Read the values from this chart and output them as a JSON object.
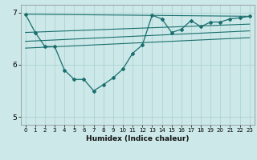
{
  "xlabel": "Humidex (Indice chaleur)",
  "bg_color": "#cce8e8",
  "grid_color": "#aacfcf",
  "line_color": "#1a6e6e",
  "xlim": [
    -0.5,
    23.5
  ],
  "ylim": [
    4.85,
    7.15
  ],
  "yticks": [
    5,
    6,
    7
  ],
  "xticks": [
    0,
    1,
    2,
    3,
    4,
    5,
    6,
    7,
    8,
    9,
    10,
    11,
    12,
    13,
    14,
    15,
    16,
    17,
    18,
    19,
    20,
    21,
    22,
    23
  ],
  "series": [
    [
      0,
      6.97
    ],
    [
      1,
      6.62
    ],
    [
      2,
      6.35
    ],
    [
      3,
      6.35
    ],
    [
      4,
      5.9
    ],
    [
      5,
      5.72
    ],
    [
      6,
      5.72
    ],
    [
      7,
      5.5
    ],
    [
      8,
      5.62
    ],
    [
      9,
      5.75
    ],
    [
      10,
      5.92
    ],
    [
      11,
      6.22
    ],
    [
      12,
      6.38
    ],
    [
      13,
      6.95
    ],
    [
      14,
      6.88
    ],
    [
      15,
      6.62
    ],
    [
      16,
      6.68
    ],
    [
      17,
      6.85
    ],
    [
      18,
      6.73
    ],
    [
      19,
      6.82
    ],
    [
      20,
      6.82
    ],
    [
      21,
      6.88
    ],
    [
      22,
      6.9
    ],
    [
      23,
      6.93
    ]
  ],
  "trend_lines": [
    [
      [
        0,
        6.97
      ],
      [
        23,
        6.93
      ]
    ],
    [
      [
        0,
        6.62
      ],
      [
        23,
        6.78
      ]
    ],
    [
      [
        0,
        6.45
      ],
      [
        23,
        6.65
      ]
    ],
    [
      [
        0,
        6.32
      ],
      [
        23,
        6.52
      ]
    ]
  ]
}
